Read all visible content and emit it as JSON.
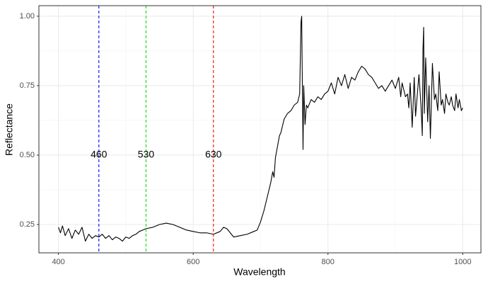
{
  "chart_data": {
    "type": "line",
    "x_label": "Wavelength",
    "y_label": "Reflectance",
    "x": [
      400,
      403,
      406,
      410,
      415,
      420,
      425,
      430,
      435,
      440,
      445,
      450,
      455,
      460,
      465,
      470,
      475,
      480,
      485,
      490,
      495,
      500,
      505,
      510,
      515,
      520,
      525,
      530,
      540,
      550,
      560,
      570,
      580,
      590,
      600,
      610,
      620,
      630,
      640,
      645,
      650,
      655,
      660,
      670,
      680,
      690,
      695,
      700,
      705,
      710,
      715,
      718,
      720,
      722,
      725,
      728,
      730,
      735,
      740,
      745,
      750,
      755,
      758,
      760,
      761,
      762,
      763,
      764,
      766,
      768,
      770,
      775,
      780,
      785,
      790,
      795,
      800,
      805,
      810,
      815,
      820,
      825,
      830,
      835,
      840,
      845,
      850,
      855,
      860,
      865,
      870,
      875,
      880,
      885,
      890,
      895,
      900,
      905,
      908,
      910,
      915,
      918,
      920,
      922,
      925,
      928,
      930,
      935,
      938,
      940,
      941,
      942,
      943,
      945,
      948,
      950,
      952,
      955,
      958,
      960,
      963,
      965,
      968,
      970,
      973,
      975,
      978,
      980,
      983,
      985,
      988,
      990,
      993,
      995,
      998,
      1000
    ],
    "series": [
      {
        "color": "#000000",
        "values": [
          0.24,
          0.22,
          0.245,
          0.21,
          0.235,
          0.2,
          0.23,
          0.215,
          0.24,
          0.19,
          0.215,
          0.2,
          0.21,
          0.205,
          0.215,
          0.2,
          0.21,
          0.195,
          0.205,
          0.2,
          0.19,
          0.205,
          0.2,
          0.21,
          0.215,
          0.225,
          0.23,
          0.235,
          0.24,
          0.25,
          0.255,
          0.25,
          0.24,
          0.23,
          0.225,
          0.22,
          0.22,
          0.215,
          0.225,
          0.24,
          0.235,
          0.22,
          0.205,
          0.21,
          0.215,
          0.225,
          0.23,
          0.26,
          0.3,
          0.35,
          0.4,
          0.44,
          0.42,
          0.49,
          0.53,
          0.57,
          0.58,
          0.63,
          0.65,
          0.66,
          0.68,
          0.69,
          0.72,
          0.98,
          1.0,
          0.75,
          0.52,
          0.75,
          0.61,
          0.68,
          0.67,
          0.7,
          0.69,
          0.71,
          0.7,
          0.72,
          0.73,
          0.76,
          0.72,
          0.78,
          0.75,
          0.79,
          0.74,
          0.78,
          0.77,
          0.8,
          0.82,
          0.81,
          0.79,
          0.78,
          0.76,
          0.74,
          0.75,
          0.73,
          0.75,
          0.77,
          0.74,
          0.78,
          0.71,
          0.76,
          0.71,
          0.72,
          0.67,
          0.76,
          0.6,
          0.78,
          0.64,
          0.79,
          0.68,
          0.57,
          0.88,
          0.96,
          0.65,
          0.85,
          0.62,
          0.75,
          0.56,
          0.83,
          0.7,
          0.72,
          0.66,
          0.8,
          0.68,
          0.7,
          0.65,
          0.72,
          0.69,
          0.68,
          0.71,
          0.68,
          0.66,
          0.72,
          0.67,
          0.7,
          0.66,
          0.67
        ]
      }
    ],
    "vlines": [
      {
        "x": 460,
        "color": "#0000ff"
      },
      {
        "x": 530,
        "color": "#00dd00"
      },
      {
        "x": 630,
        "color": "#ff0000"
      }
    ],
    "vline_label_y": 0.5,
    "xlim": [
      371,
      1027
    ],
    "ylim": [
      0.148,
      1.038
    ],
    "xticks": [
      400,
      600,
      800,
      1000
    ],
    "yticks": [
      {
        "value": 0.25,
        "label": "0.25"
      },
      {
        "value": 0.5,
        "label": "0.50"
      },
      {
        "value": 0.75,
        "label": "0.75"
      },
      {
        "value": 1,
        "label": "1.00"
      }
    ],
    "xminor": [
      500,
      700,
      900
    ],
    "yminor": [
      0.375,
      0.625,
      0.875
    ],
    "grid": true
  }
}
